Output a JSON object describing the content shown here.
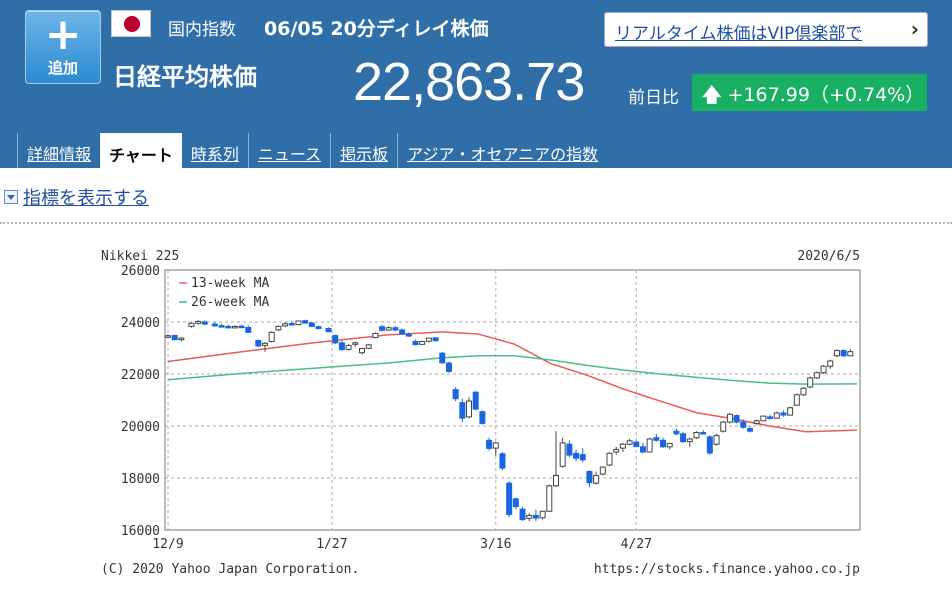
{
  "header": {
    "add_label": "追加",
    "category": "国内指数",
    "datetime": "06/05 20分ディレイ株価",
    "name": "日経平均株価",
    "price": "22,863.73",
    "prev_label": "前日比",
    "change": "+167.99（+0.74%）",
    "vip_link": "リアルタイム株価はVIP倶楽部で",
    "change_color": "#1ab064",
    "header_color": "#2f6ea7"
  },
  "tabs": [
    {
      "label": "詳細情報"
    },
    {
      "label": "チャート"
    },
    {
      "label": "時系列"
    },
    {
      "label": "ニュース"
    },
    {
      "label": "掲示板"
    },
    {
      "label": "アジア・オセアニアの指数"
    }
  ],
  "active_tab": "チャート",
  "indicator_link": "指標を表示する",
  "chart_data": {
    "type": "candlestick",
    "title": "Nikkei 225",
    "date": "2020/6/5",
    "copyright": "(C) 2020 Yahoo Japan Corporation.",
    "source": "https://stocks.finance.yahoo.co.jp",
    "y_ticks": [
      "16000",
      "18000",
      "20000",
      "22000",
      "24000",
      "26000"
    ],
    "ylim": [
      16000,
      26000
    ],
    "x_ticks": [
      {
        "label": "12/9",
        "day": 0
      },
      {
        "label": "1/27",
        "day": 49
      },
      {
        "label": "3/16",
        "day": 98
      },
      {
        "label": "4/27",
        "day": 140
      }
    ],
    "x_range": [
      0,
      189
    ],
    "legend": [
      "13-week MA",
      "26-week MA"
    ],
    "legend_placement": "top-left",
    "grid": true,
    "colors": {
      "up": "#ffffff",
      "down": "#1a66e0",
      "ma13": "#e85a5a",
      "ma26": "#4bbf7f"
    },
    "series": [
      {
        "name": "13-week MA",
        "points": [
          [
            0,
            22480
          ],
          [
            20,
            22850
          ],
          [
            40,
            23200
          ],
          [
            60,
            23500
          ],
          [
            75,
            23620
          ],
          [
            85,
            23540
          ],
          [
            95,
            23150
          ],
          [
            105,
            22400
          ],
          [
            115,
            21950
          ],
          [
            125,
            21420
          ],
          [
            135,
            20960
          ],
          [
            145,
            20510
          ],
          [
            155,
            20280
          ],
          [
            165,
            20000
          ],
          [
            175,
            19780
          ],
          [
            189,
            19840
          ]
        ]
      },
      {
        "name": "26-week MA",
        "points": [
          [
            0,
            21780
          ],
          [
            20,
            22020
          ],
          [
            40,
            22220
          ],
          [
            60,
            22420
          ],
          [
            75,
            22620
          ],
          [
            85,
            22700
          ],
          [
            95,
            22700
          ],
          [
            105,
            22540
          ],
          [
            115,
            22330
          ],
          [
            125,
            22150
          ],
          [
            135,
            22000
          ],
          [
            145,
            21870
          ],
          [
            155,
            21750
          ],
          [
            165,
            21650
          ],
          [
            175,
            21610
          ],
          [
            189,
            21620
          ]
        ]
      }
    ],
    "candles": [
      [
        0,
        23450,
        23530,
        23380,
        23470
      ],
      [
        2,
        23480,
        23520,
        23300,
        23320
      ],
      [
        4,
        23330,
        23420,
        23250,
        23380
      ],
      [
        7,
        23830,
        23980,
        23780,
        23950
      ],
      [
        9,
        23950,
        24080,
        23900,
        24020
      ],
      [
        11,
        24000,
        24060,
        23880,
        23920
      ],
      [
        14,
        23920,
        23990,
        23820,
        23850
      ],
      [
        16,
        23860,
        23930,
        23790,
        23830
      ],
      [
        18,
        23830,
        23900,
        23760,
        23800
      ],
      [
        20,
        23810,
        23880,
        23750,
        23830
      ],
      [
        22,
        23840,
        23900,
        23770,
        23790
      ],
      [
        24,
        23790,
        23880,
        23570,
        23600
      ],
      [
        27,
        23290,
        23320,
        23030,
        23080
      ],
      [
        29,
        23100,
        23230,
        22860,
        23180
      ],
      [
        31,
        23250,
        23650,
        23210,
        23600
      ],
      [
        33,
        23700,
        23870,
        23650,
        23830
      ],
      [
        35,
        23850,
        24000,
        23800,
        23930
      ],
      [
        37,
        23940,
        24020,
        23870,
        23900
      ],
      [
        39,
        23900,
        24050,
        23880,
        24040
      ],
      [
        41,
        24050,
        24090,
        23930,
        23960
      ],
      [
        43,
        23960,
        24000,
        23800,
        23830
      ],
      [
        45,
        23820,
        23860,
        23720,
        23750
      ],
      [
        48,
        23750,
        23800,
        23600,
        23630
      ],
      [
        50,
        23480,
        23520,
        23150,
        23200
      ],
      [
        52,
        23200,
        23280,
        22880,
        22940
      ],
      [
        54,
        22950,
        23150,
        22900,
        23100
      ],
      [
        56,
        23150,
        23250,
        23050,
        23200
      ],
      [
        58,
        22820,
        23000,
        22750,
        22980
      ],
      [
        60,
        22990,
        23150,
        22960,
        23120
      ],
      [
        62,
        23400,
        23600,
        23380,
        23560
      ],
      [
        64,
        23820,
        23880,
        23630,
        23680
      ],
      [
        66,
        23690,
        23830,
        23660,
        23780
      ],
      [
        68,
        23780,
        23840,
        23650,
        23690
      ],
      [
        70,
        23690,
        23750,
        23500,
        23540
      ],
      [
        72,
        23530,
        23600,
        23420,
        23460
      ],
      [
        74,
        23250,
        23320,
        23100,
        23130
      ],
      [
        76,
        23140,
        23280,
        23120,
        23250
      ],
      [
        78,
        23260,
        23400,
        23220,
        23380
      ],
      [
        80,
        23390,
        23420,
        23250,
        23280
      ],
      [
        82,
        22800,
        22850,
        22380,
        22430
      ],
      [
        84,
        22420,
        22480,
        22050,
        22100
      ],
      [
        86,
        21400,
        21500,
        20950,
        21050
      ],
      [
        88,
        20900,
        21050,
        20150,
        20300
      ],
      [
        90,
        20350,
        21100,
        20300,
        20960
      ],
      [
        92,
        21300,
        21350,
        20600,
        20650
      ],
      [
        94,
        20550,
        20600,
        20050,
        20100
      ],
      [
        96,
        19450,
        19550,
        19050,
        19140
      ],
      [
        98,
        19150,
        19400,
        18850,
        19350
      ],
      [
        100,
        18930,
        19000,
        18300,
        18380
      ],
      [
        102,
        17800,
        17880,
        16500,
        16600
      ],
      [
        104,
        17200,
        17250,
        16800,
        16900
      ],
      [
        106,
        16800,
        16900,
        16350,
        16400
      ],
      [
        108,
        16450,
        16650,
        16340,
        16560
      ],
      [
        110,
        16560,
        16780,
        16350,
        16460
      ],
      [
        112,
        16470,
        16750,
        16400,
        16720
      ],
      [
        114,
        16720,
        17750,
        16700,
        17700
      ],
      [
        116,
        17700,
        19800,
        17650,
        18100
      ],
      [
        118,
        18450,
        19550,
        18400,
        19350
      ],
      [
        120,
        19300,
        19450,
        18800,
        18880
      ],
      [
        122,
        18950,
        19100,
        18650,
        18760
      ],
      [
        124,
        18900,
        19150,
        18600,
        18700
      ],
      [
        126,
        18250,
        18300,
        17650,
        17820
      ],
      [
        128,
        17800,
        18250,
        17750,
        18100
      ],
      [
        130,
        18150,
        18450,
        18100,
        18420
      ],
      [
        132,
        18500,
        18990,
        18450,
        18950
      ],
      [
        134,
        19000,
        19200,
        18900,
        19100
      ],
      [
        136,
        19150,
        19350,
        19000,
        19300
      ],
      [
        138,
        19300,
        19500,
        19250,
        19430
      ],
      [
        140,
        19380,
        19430,
        19180,
        19210
      ],
      [
        142,
        19200,
        19350,
        18950,
        19000
      ],
      [
        144,
        19000,
        19550,
        18980,
        19500
      ],
      [
        146,
        19550,
        19700,
        19400,
        19450
      ],
      [
        148,
        19450,
        19550,
        19150,
        19200
      ],
      [
        150,
        19200,
        19350,
        19100,
        19330
      ],
      [
        152,
        19800,
        19900,
        19650,
        19700
      ],
      [
        154,
        19700,
        19780,
        19350,
        19400
      ],
      [
        156,
        19400,
        19550,
        19200,
        19500
      ],
      [
        158,
        19550,
        19800,
        19500,
        19750
      ],
      [
        160,
        19750,
        19850,
        19680,
        19700
      ],
      [
        162,
        19580,
        19650,
        18900,
        18960
      ],
      [
        164,
        19300,
        19700,
        19250,
        19630
      ],
      [
        166,
        19800,
        20200,
        19750,
        20150
      ],
      [
        168,
        20150,
        20500,
        20100,
        20450
      ],
      [
        170,
        20400,
        20450,
        20100,
        20150
      ],
      [
        172,
        20150,
        20250,
        19900,
        19950
      ],
      [
        174,
        19900,
        20000,
        19750,
        19800
      ],
      [
        176,
        20100,
        20250,
        20050,
        20200
      ],
      [
        178,
        20200,
        20400,
        20180,
        20380
      ],
      [
        180,
        20350,
        20420,
        20250,
        20300
      ],
      [
        182,
        20300,
        20550,
        20280,
        20500
      ],
      [
        184,
        20500,
        20600,
        20350,
        20420
      ],
      [
        186,
        20420,
        20750,
        20400,
        20700
      ],
      [
        188,
        20800,
        21250,
        20780,
        21200
      ],
      [
        190,
        21200,
        21500,
        21150,
        21450
      ],
      [
        192,
        21500,
        21900,
        21450,
        21850
      ],
      [
        194,
        21850,
        22100,
        21800,
        22050
      ],
      [
        196,
        22050,
        22350,
        22000,
        22300
      ],
      [
        198,
        22300,
        22550,
        22200,
        22500
      ],
      [
        200,
        22700,
        22950,
        22650,
        22900
      ],
      [
        202,
        22900,
        22950,
        22650,
        22700
      ],
      [
        204,
        22700,
        22950,
        22680,
        22860
      ]
    ]
  }
}
